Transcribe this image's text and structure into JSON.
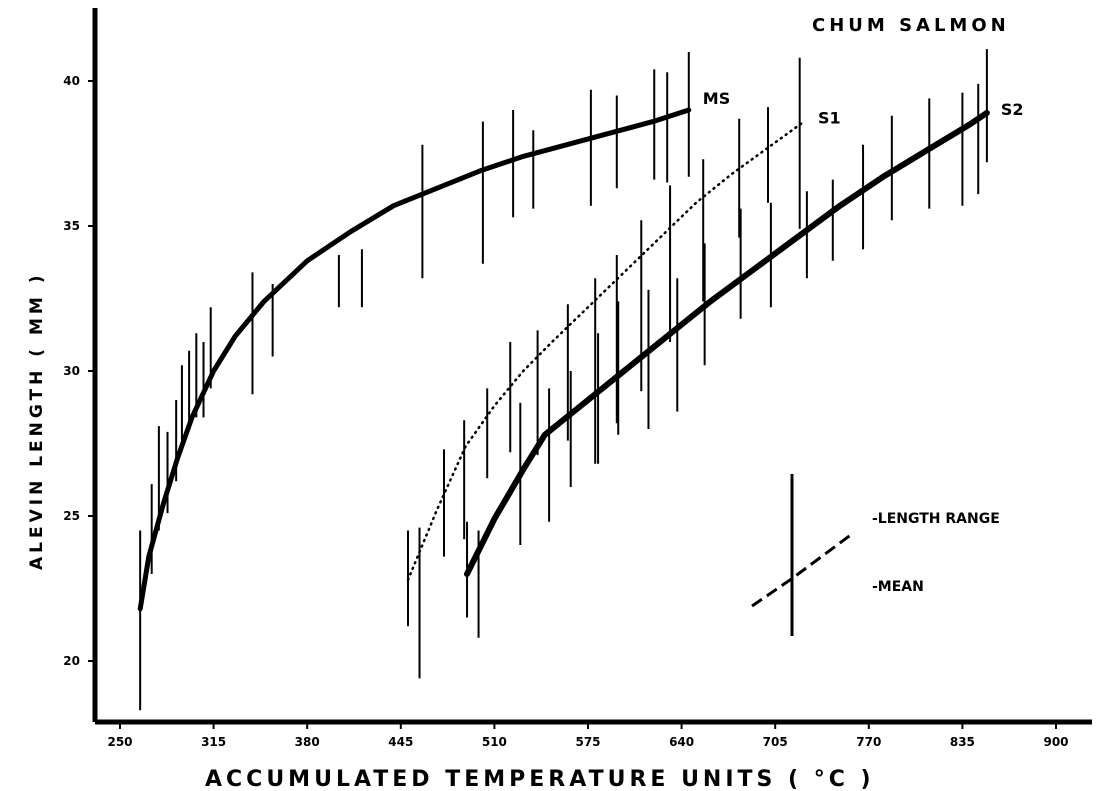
{
  "chart_data": {
    "type": "line",
    "title": "CHUM SALMON",
    "xlabel": "ACCUMULATED TEMPERATURE UNITS ( °C )",
    "ylabel": "ALEVIN LENGTH ( MM )",
    "xlim": [
      250,
      900
    ],
    "ylim": [
      18,
      42
    ],
    "x_ticks": [
      250,
      315,
      380,
      445,
      510,
      575,
      640,
      705,
      770,
      835,
      900
    ],
    "x_tick_labels": [
      "250",
      "315",
      "380",
      "445",
      "510",
      "575",
      "640",
      "705",
      "770",
      "835",
      "900"
    ],
    "y_ticks": [
      20,
      25,
      30,
      35,
      40
    ],
    "y_tick_labels": [
      "20",
      "25",
      "30",
      "35",
      "40"
    ],
    "grid": false,
    "legend": {
      "placement": "bottom-right",
      "entries": [
        "-LENGTH RANGE",
        "-MEAN"
      ]
    },
    "series": [
      {
        "name": "MS",
        "line_style": "solid",
        "x": [
          264,
          270,
          280,
          290,
          300,
          315,
          330,
          350,
          380,
          410,
          440,
          470,
          500,
          530,
          560,
          590,
          620,
          645
        ],
        "y": [
          21.8,
          23.6,
          25.4,
          27.0,
          28.4,
          30.0,
          31.2,
          32.4,
          33.8,
          34.8,
          35.7,
          36.3,
          36.9,
          37.4,
          37.8,
          38.2,
          38.6,
          39.0
        ],
        "ranges": [
          {
            "x": 264,
            "min": 18.3,
            "max": 24.5
          },
          {
            "x": 272,
            "min": 23.0,
            "max": 26.1
          },
          {
            "x": 277,
            "min": 24.5,
            "max": 28.1
          },
          {
            "x": 283,
            "min": 25.1,
            "max": 27.9
          },
          {
            "x": 289,
            "min": 26.2,
            "max": 29.0
          },
          {
            "x": 293,
            "min": 27.6,
            "max": 30.2
          },
          {
            "x": 298,
            "min": 28.1,
            "max": 30.7
          },
          {
            "x": 303,
            "min": 28.4,
            "max": 31.3
          },
          {
            "x": 308,
            "min": 28.4,
            "max": 31.0
          },
          {
            "x": 313,
            "min": 29.4,
            "max": 32.2
          },
          {
            "x": 342,
            "min": 29.2,
            "max": 33.4
          },
          {
            "x": 356,
            "min": 30.5,
            "max": 33.0
          },
          {
            "x": 402,
            "min": 32.2,
            "max": 34.0
          },
          {
            "x": 418,
            "min": 32.2,
            "max": 34.2
          },
          {
            "x": 460,
            "min": 33.2,
            "max": 37.8
          },
          {
            "x": 502,
            "min": 33.7,
            "max": 38.6
          },
          {
            "x": 523,
            "min": 35.3,
            "max": 39.0
          },
          {
            "x": 537,
            "min": 35.6,
            "max": 38.3
          },
          {
            "x": 577,
            "min": 35.7,
            "max": 39.7
          },
          {
            "x": 595,
            "min": 36.3,
            "max": 39.5
          },
          {
            "x": 621,
            "min": 36.6,
            "max": 40.4
          },
          {
            "x": 630,
            "min": 36.5,
            "max": 40.3
          },
          {
            "x": 645,
            "min": 36.7,
            "max": 41.0
          }
        ]
      },
      {
        "name": "S1",
        "line_style": "dotted",
        "x": [
          450,
          470,
          490,
          510,
          530,
          550,
          575,
          600,
          625,
          650,
          675,
          700,
          725
        ],
        "y": [
          22.8,
          25.2,
          27.4,
          28.8,
          30.0,
          31.0,
          32.2,
          33.4,
          34.6,
          35.8,
          36.8,
          37.7,
          38.6
        ],
        "ranges": [
          {
            "x": 450,
            "min": 21.2,
            "max": 24.5
          },
          {
            "x": 458,
            "min": 19.4,
            "max": 24.6
          },
          {
            "x": 475,
            "min": 23.6,
            "max": 27.3
          },
          {
            "x": 489,
            "min": 24.2,
            "max": 28.3
          },
          {
            "x": 505,
            "min": 26.3,
            "max": 29.4
          },
          {
            "x": 521,
            "min": 27.2,
            "max": 31.0
          },
          {
            "x": 540,
            "min": 27.1,
            "max": 31.4
          },
          {
            "x": 561,
            "min": 27.6,
            "max": 32.3
          },
          {
            "x": 580,
            "min": 26.8,
            "max": 33.2
          },
          {
            "x": 595,
            "min": 28.2,
            "max": 34.0
          },
          {
            "x": 612,
            "min": 29.3,
            "max": 35.2
          },
          {
            "x": 632,
            "min": 31.0,
            "max": 36.4
          },
          {
            "x": 655,
            "min": 32.4,
            "max": 37.3
          },
          {
            "x": 680,
            "min": 34.6,
            "max": 38.7
          },
          {
            "x": 700,
            "min": 35.8,
            "max": 39.1
          },
          {
            "x": 722,
            "min": 34.9,
            "max": 40.8
          }
        ]
      },
      {
        "name": "S2",
        "line_style": "solid-thick",
        "x": [
          491,
          510,
          530,
          545,
          570,
          600,
          630,
          660,
          690,
          720,
          750,
          780,
          810,
          840,
          852
        ],
        "y": [
          23.0,
          24.9,
          26.6,
          27.8,
          28.8,
          30.0,
          31.2,
          32.4,
          33.5,
          34.6,
          35.7,
          36.7,
          37.6,
          38.5,
          38.9
        ],
        "ranges": [
          {
            "x": 491,
            "min": 21.5,
            "max": 24.8
          },
          {
            "x": 499,
            "min": 20.8,
            "max": 24.5
          },
          {
            "x": 528,
            "min": 24.0,
            "max": 28.9
          },
          {
            "x": 548,
            "min": 24.8,
            "max": 29.4
          },
          {
            "x": 563,
            "min": 26.0,
            "max": 30.0
          },
          {
            "x": 582,
            "min": 26.8,
            "max": 31.3
          },
          {
            "x": 596,
            "min": 27.8,
            "max": 32.4
          },
          {
            "x": 617,
            "min": 28.0,
            "max": 32.8
          },
          {
            "x": 637,
            "min": 28.6,
            "max": 33.2
          },
          {
            "x": 656,
            "min": 30.2,
            "max": 34.4
          },
          {
            "x": 681,
            "min": 31.8,
            "max": 35.6
          },
          {
            "x": 702,
            "min": 32.2,
            "max": 35.8
          },
          {
            "x": 727,
            "min": 33.2,
            "max": 36.2
          },
          {
            "x": 745,
            "min": 33.8,
            "max": 36.6
          },
          {
            "x": 766,
            "min": 34.2,
            "max": 37.8
          },
          {
            "x": 786,
            "min": 35.2,
            "max": 38.8
          },
          {
            "x": 812,
            "min": 35.6,
            "max": 39.4
          },
          {
            "x": 835,
            "min": 35.7,
            "max": 39.6
          },
          {
            "x": 846,
            "min": 36.1,
            "max": 39.9
          },
          {
            "x": 852,
            "min": 37.2,
            "max": 41.1
          }
        ]
      }
    ]
  }
}
